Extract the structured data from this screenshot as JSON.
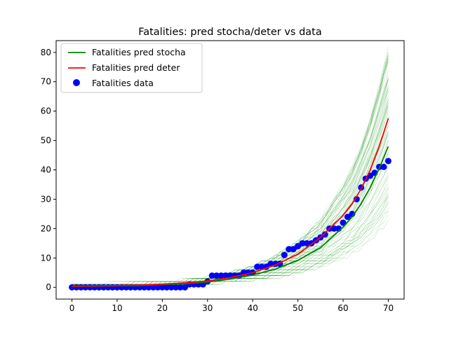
{
  "chart_data": {
    "type": "line",
    "title": "Fatalities: pred stocha/deter vs data",
    "xlabel": "",
    "ylabel": "",
    "xlim": [
      -3.5,
      73.5
    ],
    "ylim": [
      -4,
      84
    ],
    "x_ticks": [
      0,
      10,
      20,
      30,
      40,
      50,
      60,
      70
    ],
    "y_ticks": [
      0,
      10,
      20,
      30,
      40,
      50,
      60,
      70,
      80
    ],
    "legend_position": "top-left",
    "grid": false,
    "colors": {
      "stocha": "#008000",
      "deter": "#ff0000",
      "data": "#0000ff",
      "realizations": "#2ca02c"
    },
    "series": [
      {
        "name": "Fatalities pred stocha",
        "type": "line",
        "color": "#008000",
        "x": [
          0,
          5,
          10,
          15,
          20,
          25,
          30,
          35,
          40,
          45,
          50,
          55,
          60,
          62,
          64,
          66,
          68,
          70
        ],
        "y": [
          0.3,
          0.4,
          0.5,
          0.6,
          0.9,
          1.2,
          1.8,
          2.8,
          4.2,
          6.2,
          9.2,
          13.5,
          20.5,
          24,
          28.5,
          34,
          40.5,
          48
        ]
      },
      {
        "name": "Fatalities pred deter",
        "type": "line",
        "color": "#ff0000",
        "x": [
          0,
          5,
          10,
          15,
          20,
          25,
          30,
          35,
          40,
          45,
          50,
          55,
          58,
          60,
          62,
          64,
          66,
          68,
          70
        ],
        "y": [
          0.4,
          0.5,
          0.6,
          0.8,
          1.1,
          1.5,
          2.2,
          3.3,
          5.0,
          7.6,
          11.3,
          17.0,
          21.5,
          24.5,
          28.5,
          33.5,
          40,
          48,
          57.5
        ]
      },
      {
        "name": "Fatalities data",
        "type": "scatter",
        "color": "#0000ff",
        "x": [
          0,
          1,
          2,
          3,
          4,
          5,
          6,
          7,
          8,
          9,
          10,
          11,
          12,
          13,
          14,
          15,
          16,
          17,
          18,
          19,
          20,
          21,
          22,
          23,
          24,
          25,
          26,
          27,
          28,
          29,
          30,
          31,
          32,
          33,
          34,
          35,
          36,
          37,
          38,
          39,
          40,
          41,
          42,
          43,
          44,
          45,
          46,
          47,
          48,
          49,
          50,
          51,
          52,
          53,
          54,
          55,
          56,
          57,
          58,
          59,
          60,
          61,
          62,
          63,
          64,
          65,
          66,
          67,
          68,
          69,
          70
        ],
        "y": [
          0,
          0,
          0,
          0,
          0,
          0,
          0,
          0,
          0,
          0,
          0,
          0,
          0,
          0,
          0,
          0,
          0,
          0,
          0,
          0,
          0,
          0,
          0,
          0,
          0,
          0,
          1,
          1,
          1,
          1,
          2,
          4,
          4,
          4,
          4,
          4,
          4,
          4,
          5,
          5,
          5,
          7,
          7,
          7,
          8,
          8,
          8,
          11,
          13,
          13,
          14,
          15,
          15,
          15,
          16,
          17,
          18,
          20,
          20,
          20,
          22,
          24,
          25,
          30,
          34,
          37,
          38,
          39,
          41,
          41,
          43
        ]
      }
    ]
  }
}
